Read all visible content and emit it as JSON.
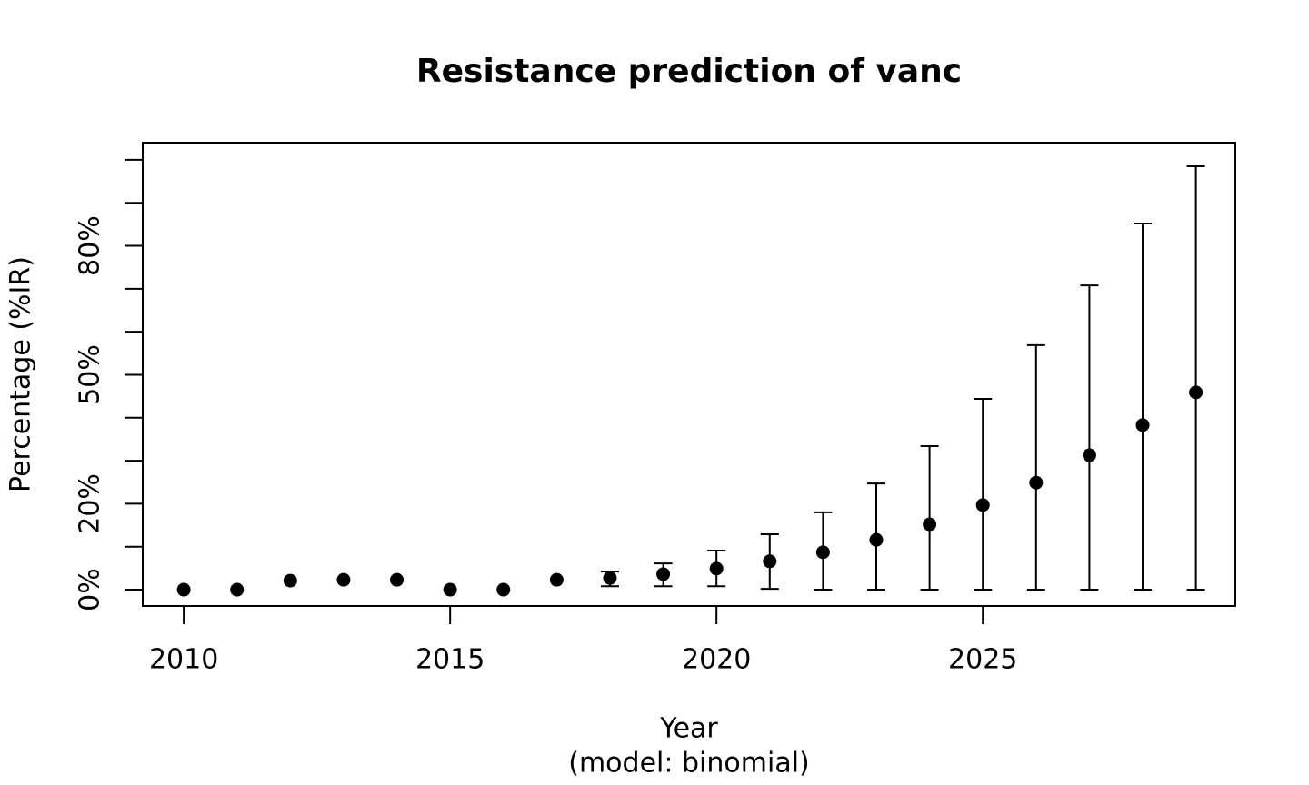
{
  "chart_data": {
    "type": "errorbar",
    "title": "Resistance prediction of vanc",
    "x_label": "Year",
    "x_sublabel": "(model: binomial)",
    "y_label": "Percentage (%IR)",
    "x": [
      2010,
      2011,
      2012,
      2013,
      2014,
      2015,
      2016,
      2017,
      2018,
      2019,
      2020,
      2021,
      2022,
      2023,
      2024,
      2025,
      2026,
      2027,
      2028,
      2029
    ],
    "values": [
      0,
      0,
      2.1,
      2.3,
      2.3,
      0,
      0,
      2.3,
      2.7,
      3.6,
      4.9,
      6.6,
      8.7,
      11.6,
      15.2,
      19.7,
      24.9,
      31.3,
      38.3,
      45.9
    ],
    "lower": [
      null,
      null,
      null,
      null,
      null,
      null,
      null,
      null,
      0.8,
      0.8,
      0.8,
      0.2,
      0,
      0,
      0,
      0,
      0,
      0,
      0,
      0
    ],
    "upper": [
      null,
      null,
      null,
      null,
      null,
      null,
      null,
      null,
      4.2,
      6.1,
      9.1,
      12.9,
      18.0,
      24.7,
      33.4,
      44.4,
      56.9,
      70.8,
      85.2,
      98.5
    ],
    "color": "#000000",
    "xlim": [
      2009.23,
      2029.74
    ],
    "xticks": [
      2010,
      2015,
      2020,
      2025
    ],
    "ylim": [
      -3.8,
      104
    ],
    "yticks": [
      {
        "value": 0,
        "label": "0%"
      },
      {
        "value": 10,
        "label": null
      },
      {
        "value": 20,
        "label": "20%"
      },
      {
        "value": 30,
        "label": null
      },
      {
        "value": 40,
        "label": null
      },
      {
        "value": 50,
        "label": "50%"
      },
      {
        "value": 60,
        "label": null
      },
      {
        "value": 70,
        "label": null
      },
      {
        "value": 80,
        "label": "80%"
      },
      {
        "value": 90,
        "label": null
      },
      {
        "value": 100,
        "label": null
      }
    ]
  }
}
